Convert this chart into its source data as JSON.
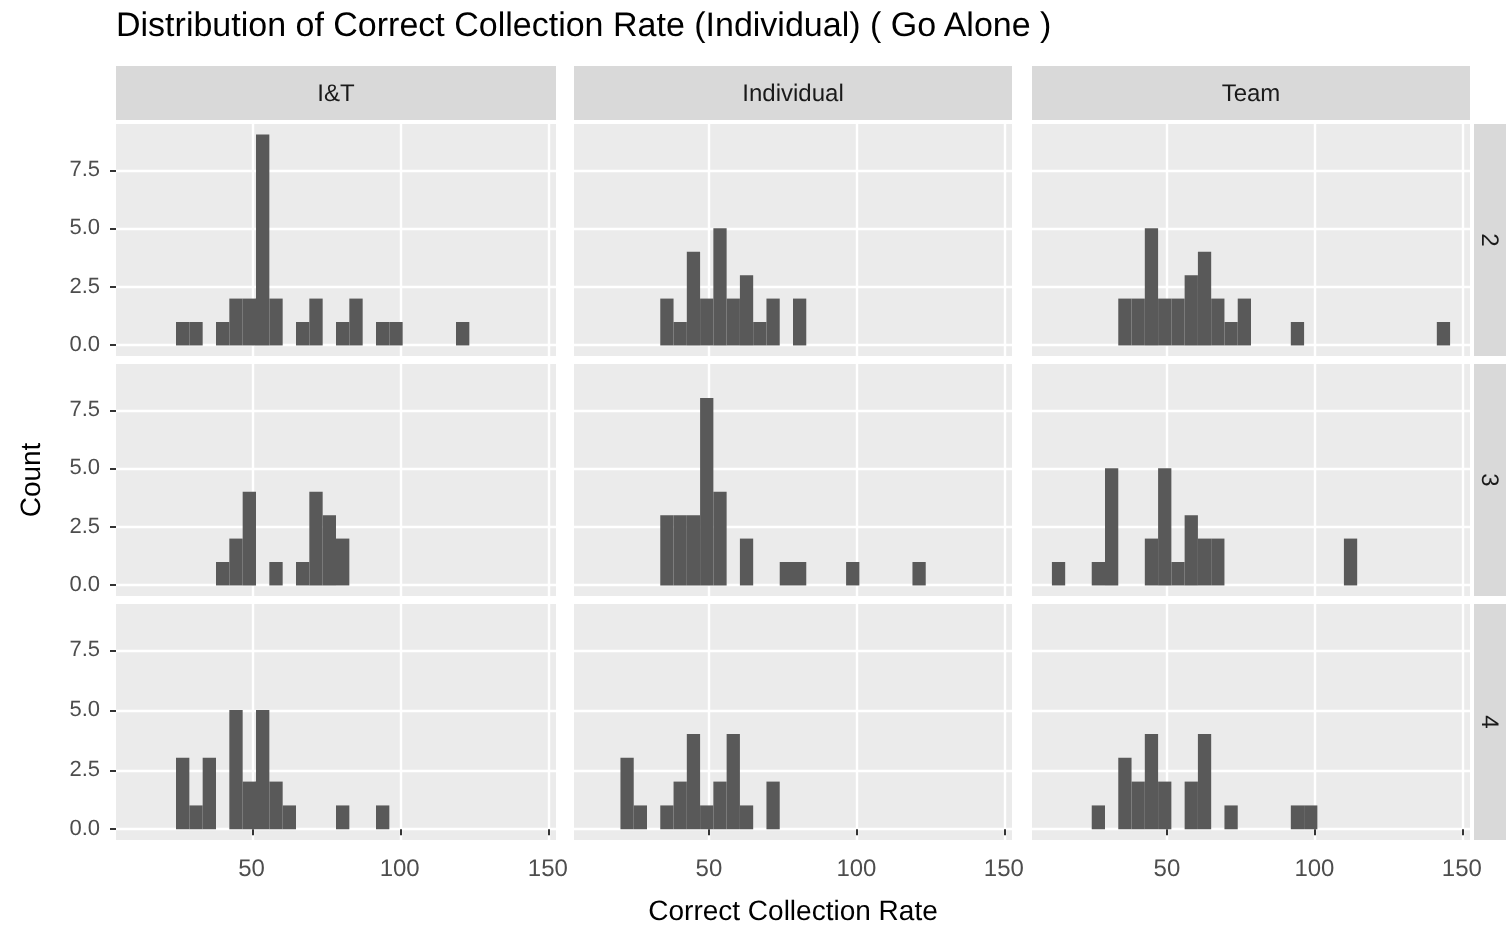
{
  "chart_data": [
    {
      "type": "histogram",
      "title": "I&T",
      "annotations": [
        "Distribution of Correct Collection Rate (Individual) ( Go Alone )"
      ],
      "bins": [
        11,
        15.5,
        20,
        24.5,
        29,
        33.5,
        38,
        42.5,
        47,
        51.5,
        56,
        60.5,
        65,
        69.5,
        74,
        78.5,
        83,
        87.5,
        92,
        96.5,
        101,
        105.5,
        110,
        114.5,
        119,
        123.5,
        128,
        132.5,
        137,
        141.5,
        146
      ],
      "values": [
        0,
        0,
        0,
        1,
        1,
        0,
        1,
        2,
        2,
        9,
        2,
        0,
        1,
        2,
        0,
        1,
        2,
        0,
        1,
        1,
        0,
        0,
        0,
        0,
        1,
        0,
        0,
        0,
        0,
        0
      ],
      "color": "#595959",
      "xlim": [
        4.25,
        152.75
      ],
      "xticks": [
        50,
        100,
        150
      ],
      "ylim": [
        -0.45,
        9.45
      ],
      "yticks": [
        {
          "value": 0,
          "label": "0.0"
        },
        {
          "value": 2.5,
          "label": "2.5"
        },
        {
          "value": 5,
          "label": "5.0"
        },
        {
          "value": 7.5,
          "label": "7.5"
        }
      ],
      "grid": true,
      "tick_labels": "y"
    },
    {
      "type": "histogram",
      "title": "Individual",
      "bins": [
        11,
        15.5,
        20,
        24.5,
        29,
        33.5,
        38,
        42.5,
        47,
        51.5,
        56,
        60.5,
        65,
        69.5,
        74,
        78.5,
        83,
        87.5,
        92,
        96.5,
        101,
        105.5,
        110,
        114.5,
        119,
        123.5,
        128,
        132.5,
        137,
        141.5,
        146
      ],
      "values": [
        0,
        0,
        0,
        0,
        0,
        2,
        1,
        4,
        2,
        5,
        2,
        3,
        1,
        2,
        0,
        2,
        0,
        0,
        0,
        0,
        0,
        0,
        0,
        0,
        0,
        0,
        0,
        0,
        0,
        0
      ],
      "color": "#595959",
      "xlim": [
        4.25,
        152.75
      ],
      "xticks": [
        50,
        100,
        150
      ],
      "ylim": [
        -0.45,
        9.45
      ],
      "yticks": [
        0,
        2.5,
        5,
        7.5
      ],
      "grid": true,
      "tick_labels": false
    },
    {
      "type": "histogram",
      "title": "Team",
      "y2label": "2",
      "bins": [
        11,
        15.5,
        20,
        24.5,
        29,
        33.5,
        38,
        42.5,
        47,
        51.5,
        56,
        60.5,
        65,
        69.5,
        74,
        78.5,
        83,
        87.5,
        92,
        96.5,
        101,
        105.5,
        110,
        114.5,
        119,
        123.5,
        128,
        132.5,
        137,
        141.5,
        146
      ],
      "values": [
        0,
        0,
        0,
        0,
        0,
        2,
        2,
        5,
        2,
        2,
        3,
        4,
        2,
        1,
        2,
        0,
        0,
        0,
        1,
        0,
        0,
        0,
        0,
        0,
        0,
        0,
        0,
        0,
        0,
        1
      ],
      "color": "#595959",
      "xlim": [
        4.25,
        152.75
      ],
      "xticks": [
        50,
        100,
        150
      ],
      "ylim": [
        -0.45,
        9.45
      ],
      "yticks": [
        0,
        2.5,
        5,
        7.5
      ],
      "grid": true,
      "tick_labels": false
    },
    {
      "type": "histogram",
      "ylabel": "Count",
      "bins": [
        11,
        15.5,
        20,
        24.5,
        29,
        33.5,
        38,
        42.5,
        47,
        51.5,
        56,
        60.5,
        65,
        69.5,
        74,
        78.5,
        83,
        87.5,
        92,
        96.5,
        101,
        105.5,
        110,
        114.5,
        119,
        123.5,
        128,
        132.5,
        137,
        141.5,
        146
      ],
      "values": [
        0,
        0,
        0,
        0,
        0,
        0,
        1,
        2,
        4,
        0,
        1,
        0,
        1,
        4,
        3,
        2,
        0,
        0,
        0,
        0,
        0,
        0,
        0,
        0,
        0,
        0,
        0,
        0,
        0,
        0
      ],
      "color": "#595959",
      "xlim": [
        4.25,
        152.75
      ],
      "xticks": [
        50,
        100,
        150
      ],
      "ylim": [
        -0.45,
        9.45
      ],
      "yticks": [
        {
          "value": 0,
          "label": "0.0"
        },
        {
          "value": 2.5,
          "label": "2.5"
        },
        {
          "value": 5,
          "label": "5.0"
        },
        {
          "value": 7.5,
          "label": "7.5"
        }
      ],
      "grid": true,
      "tick_labels": "y"
    },
    {
      "type": "histogram",
      "bins": [
        11,
        15.5,
        20,
        24.5,
        29,
        33.5,
        38,
        42.5,
        47,
        51.5,
        56,
        60.5,
        65,
        69.5,
        74,
        78.5,
        83,
        87.5,
        92,
        96.5,
        101,
        105.5,
        110,
        114.5,
        119,
        123.5,
        128,
        132.5,
        137,
        141.5,
        146
      ],
      "values": [
        0,
        0,
        0,
        0,
        0,
        3,
        3,
        3,
        8,
        4,
        0,
        2,
        0,
        0,
        1,
        1,
        0,
        0,
        0,
        1,
        0,
        0,
        0,
        0,
        1,
        0,
        0,
        0,
        0,
        0
      ],
      "color": "#595959",
      "xlim": [
        4.25,
        152.75
      ],
      "xticks": [
        50,
        100,
        150
      ],
      "ylim": [
        -0.45,
        9.45
      ],
      "yticks": [
        0,
        2.5,
        5,
        7.5
      ],
      "grid": true,
      "tick_labels": false
    },
    {
      "type": "histogram",
      "y2label": "3",
      "bins": [
        11,
        15.5,
        20,
        24.5,
        29,
        33.5,
        38,
        42.5,
        47,
        51.5,
        56,
        60.5,
        65,
        69.5,
        74,
        78.5,
        83,
        87.5,
        92,
        96.5,
        101,
        105.5,
        110,
        114.5,
        119,
        123.5,
        128,
        132.5,
        137,
        141.5,
        146
      ],
      "values": [
        1,
        0,
        0,
        1,
        5,
        0,
        0,
        2,
        5,
        1,
        3,
        2,
        2,
        0,
        0,
        0,
        0,
        0,
        0,
        0,
        0,
        0,
        2,
        0,
        0,
        0,
        0,
        0,
        0,
        0
      ],
      "color": "#595959",
      "xlim": [
        4.25,
        152.75
      ],
      "xticks": [
        50,
        100,
        150
      ],
      "ylim": [
        -0.45,
        9.45
      ],
      "yticks": [
        0,
        2.5,
        5,
        7.5
      ],
      "grid": true,
      "tick_labels": false
    },
    {
      "type": "histogram",
      "bins": [
        11,
        15.5,
        20,
        24.5,
        29,
        33.5,
        38,
        42.5,
        47,
        51.5,
        56,
        60.5,
        65,
        69.5,
        74,
        78.5,
        83,
        87.5,
        92,
        96.5,
        101,
        105.5,
        110,
        114.5,
        119,
        123.5,
        128,
        132.5,
        137,
        141.5,
        146
      ],
      "values": [
        0,
        0,
        0,
        3,
        1,
        3,
        0,
        5,
        2,
        5,
        2,
        1,
        0,
        0,
        0,
        1,
        0,
        0,
        1,
        0,
        0,
        0,
        0,
        0,
        0,
        0,
        0,
        0,
        0,
        0
      ],
      "color": "#595959",
      "xlim": [
        4.25,
        152.75
      ],
      "xticks": [
        50,
        100,
        150
      ],
      "ylim": [
        -0.45,
        9.45
      ],
      "yticks": [
        {
          "value": 0,
          "label": "0.0"
        },
        {
          "value": 2.5,
          "label": "2.5"
        },
        {
          "value": 5,
          "label": "5.0"
        },
        {
          "value": 7.5,
          "label": "7.5"
        }
      ],
      "grid": true
    },
    {
      "type": "histogram",
      "xlabel": "Correct Collection Rate",
      "bins": [
        11,
        15.5,
        20,
        24.5,
        29,
        33.5,
        38,
        42.5,
        47,
        51.5,
        56,
        60.5,
        65,
        69.5,
        74,
        78.5,
        83,
        87.5,
        92,
        96.5,
        101,
        105.5,
        110,
        114.5,
        119,
        123.5,
        128,
        132.5,
        137,
        141.5,
        146
      ],
      "values": [
        0,
        0,
        3,
        1,
        0,
        1,
        2,
        4,
        1,
        2,
        4,
        1,
        0,
        2,
        0,
        0,
        0,
        0,
        0,
        0,
        0,
        0,
        0,
        0,
        0,
        0,
        0,
        0,
        0,
        0
      ],
      "color": "#595959",
      "xlim": [
        4.25,
        152.75
      ],
      "xticks": [
        50,
        100,
        150
      ],
      "ylim": [
        -0.45,
        9.45
      ],
      "yticks": [
        0,
        2.5,
        5,
        7.5
      ],
      "grid": true,
      "tick_labels": "x"
    },
    {
      "type": "histogram",
      "y2label": "4",
      "bins": [
        11,
        15.5,
        20,
        24.5,
        29,
        33.5,
        38,
        42.5,
        47,
        51.5,
        56,
        60.5,
        65,
        69.5,
        74,
        78.5,
        83,
        87.5,
        92,
        96.5,
        101,
        105.5,
        110,
        114.5,
        119,
        123.5,
        128,
        132.5,
        137,
        141.5,
        146
      ],
      "values": [
        0,
        0,
        0,
        1,
        0,
        3,
        2,
        4,
        2,
        0,
        2,
        4,
        0,
        1,
        0,
        0,
        0,
        0,
        1,
        1,
        0,
        0,
        0,
        0,
        0,
        0,
        0,
        0,
        0,
        0
      ],
      "color": "#595959",
      "xlim": [
        4.25,
        152.75
      ],
      "xticks": [
        50,
        100,
        150
      ],
      "ylim": [
        -0.45,
        9.45
      ],
      "yticks": [
        0,
        2.5,
        5,
        7.5
      ],
      "grid": true,
      "tick_labels": "x"
    }
  ]
}
